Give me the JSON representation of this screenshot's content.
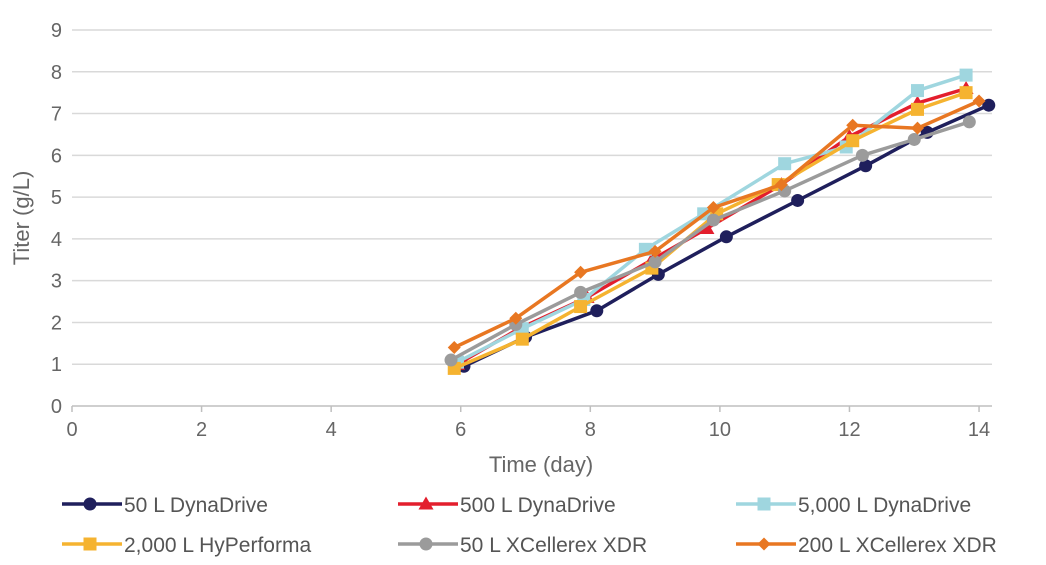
{
  "chart_data": {
    "type": "line",
    "title": "",
    "xlabel": "Time (day)",
    "ylabel": "Titer (g/L)",
    "xlim": [
      0,
      14.2
    ],
    "ylim": [
      0,
      9
    ],
    "xticks": [
      0,
      2,
      4,
      6,
      8,
      10,
      12,
      14
    ],
    "yticks": [
      0,
      1,
      2,
      3,
      4,
      5,
      6,
      7,
      8,
      9
    ],
    "grid": "horizontal",
    "legend_position": "bottom",
    "series": [
      {
        "name": "50 L DynaDrive",
        "color": "#1f1f5c",
        "marker": "circle",
        "points": [
          [
            6.05,
            0.95
          ],
          [
            7.0,
            1.65
          ],
          [
            8.1,
            2.28
          ],
          [
            9.05,
            3.15
          ],
          [
            10.1,
            4.05
          ],
          [
            11.2,
            4.92
          ],
          [
            12.25,
            5.75
          ],
          [
            13.2,
            6.55
          ],
          [
            14.15,
            7.2
          ]
        ]
      },
      {
        "name": "500 L DynaDrive",
        "color": "#e31e2d",
        "marker": "triangle",
        "points": [
          [
            5.95,
            1.0
          ],
          [
            6.9,
            1.85
          ],
          [
            7.95,
            2.6
          ],
          [
            8.95,
            3.5
          ],
          [
            9.8,
            4.25
          ],
          [
            10.95,
            5.3
          ],
          [
            12.0,
            6.45
          ],
          [
            13.05,
            7.25
          ],
          [
            13.8,
            7.6
          ]
        ]
      },
      {
        "name": "5,000 L DynaDrive",
        "color": "#9fd6df",
        "marker": "square",
        "points": [
          [
            5.95,
            1.05
          ],
          [
            6.95,
            1.85
          ],
          [
            7.9,
            2.55
          ],
          [
            8.85,
            3.75
          ],
          [
            9.75,
            4.6
          ],
          [
            11.0,
            5.8
          ],
          [
            11.95,
            6.2
          ],
          [
            13.05,
            7.55
          ],
          [
            13.8,
            7.92
          ]
        ]
      },
      {
        "name": "2,000 L HyPerforma",
        "color": "#f5b330",
        "marker": "square",
        "points": [
          [
            5.9,
            0.9
          ],
          [
            6.95,
            1.6
          ],
          [
            7.85,
            2.38
          ],
          [
            8.95,
            3.3
          ],
          [
            9.95,
            4.6
          ],
          [
            10.9,
            5.3
          ],
          [
            12.05,
            6.35
          ],
          [
            13.05,
            7.1
          ],
          [
            13.8,
            7.5
          ]
        ]
      },
      {
        "name": "50 L XCellerex XDR",
        "color": "#9b9b9b",
        "marker": "circle",
        "points": [
          [
            5.85,
            1.1
          ],
          [
            6.85,
            1.95
          ],
          [
            7.85,
            2.72
          ],
          [
            9.0,
            3.45
          ],
          [
            9.9,
            4.45
          ],
          [
            11.0,
            5.15
          ],
          [
            12.2,
            6.0
          ],
          [
            13.0,
            6.38
          ],
          [
            13.85,
            6.8
          ]
        ]
      },
      {
        "name": "200 L XCellerex XDR",
        "color": "#e87722",
        "marker": "diamond",
        "points": [
          [
            5.9,
            1.4
          ],
          [
            6.85,
            2.1
          ],
          [
            7.85,
            3.2
          ],
          [
            9.0,
            3.7
          ],
          [
            9.9,
            4.75
          ],
          [
            10.95,
            5.3
          ],
          [
            12.05,
            6.72
          ],
          [
            13.05,
            6.65
          ],
          [
            14.0,
            7.3
          ]
        ]
      }
    ]
  }
}
